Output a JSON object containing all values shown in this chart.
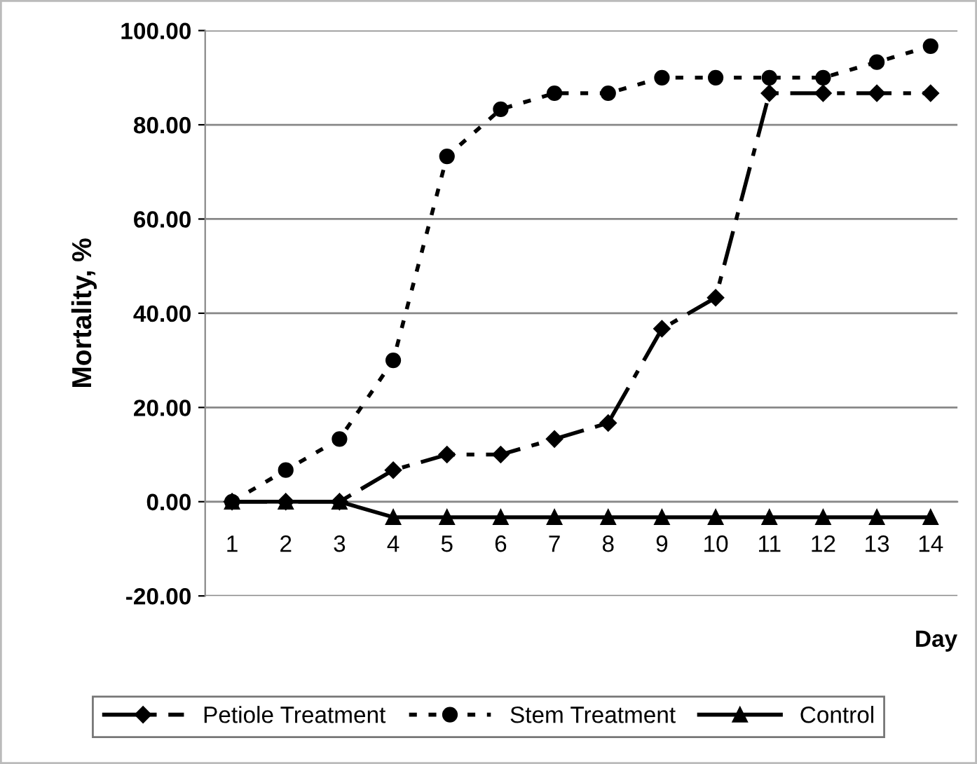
{
  "chart_data": {
    "type": "line",
    "ylabel": "Mortality, %",
    "xlabel": "Day",
    "categories": [
      "1",
      "2",
      "3",
      "4",
      "5",
      "6",
      "7",
      "8",
      "9",
      "10",
      "11",
      "12",
      "13",
      "14"
    ],
    "series": [
      {
        "name": "Petiole Treatment",
        "color": "#000000",
        "marker": "diamond",
        "line_style": "dashed",
        "values": [
          0,
          0,
          0,
          6.7,
          10,
          10,
          13.3,
          16.7,
          36.7,
          43.3,
          86.7,
          86.7,
          86.7,
          86.7
        ]
      },
      {
        "name": "Stem Treatment",
        "color": "#000000",
        "marker": "circle",
        "line_style": "dotted",
        "values": [
          0,
          6.7,
          13.3,
          30,
          73.3,
          83.3,
          86.7,
          86.7,
          90,
          90,
          90,
          90,
          93.3,
          96.7
        ]
      },
      {
        "name": "Control",
        "color": "#000000",
        "marker": "triangle",
        "line_style": "solid",
        "values": [
          0,
          0,
          0,
          -3.3,
          -3.3,
          -3.3,
          -3.3,
          -3.3,
          -3.3,
          -3.3,
          -3.3,
          -3.3,
          -3.3,
          -3.3
        ]
      }
    ],
    "ylim": [
      -20,
      100
    ],
    "yticks": [
      {
        "value": -20,
        "label": "-20.00"
      },
      {
        "value": 0,
        "label": "0.00"
      },
      {
        "value": 20,
        "label": "20.00"
      },
      {
        "value": 40,
        "label": "40.00"
      },
      {
        "value": 60,
        "label": "60.00"
      },
      {
        "value": 80,
        "label": "80.00"
      },
      {
        "value": 100,
        "label": "100.00"
      }
    ],
    "grid": "y",
    "legend": "bottom"
  }
}
